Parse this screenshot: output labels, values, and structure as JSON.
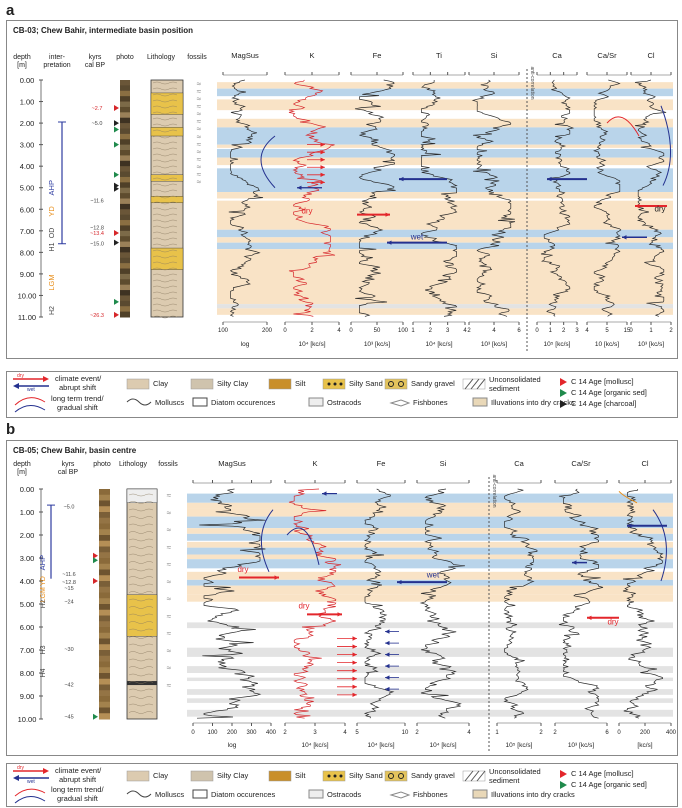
{
  "panels": [
    {
      "letter": "a",
      "title": "CB-03; Chew Bahir, intermediate basin position",
      "headers": {
        "depth": "depth",
        "depth_unit": "[m]",
        "interpretation": "inter-",
        "interpretation2": "pretation",
        "kyrs": "kyrs",
        "kyrs2": "cal BP",
        "photo": "photo",
        "lithology": "Lithology",
        "fossils": "fossils"
      },
      "proxies": [
        "MagSus",
        "K",
        "Fe",
        "Ti",
        "Si",
        "Ca",
        "Ca/Sr",
        "Cl"
      ],
      "units": [
        "log",
        "10⁴ [kc/s]",
        "10³ [kc/s]",
        "10⁴ [kc/s]",
        "10³ [kc/s]",
        "10⁵ [kc/s]",
        "10 [kc/s]",
        "10³ [kc/s]"
      ],
      "tick_labels": [
        [
          "100",
          "200"
        ],
        [
          "0",
          "2",
          "4"
        ],
        [
          "0",
          "50",
          "100"
        ],
        [
          "1",
          "2",
          "3",
          "4"
        ],
        [
          "2",
          "4",
          "6"
        ],
        [
          "0",
          "1",
          "2",
          "3"
        ],
        [
          "4",
          "5",
          "15"
        ],
        [
          "0",
          "1",
          "2"
        ]
      ],
      "correlation_label": "anti-correlation",
      "depth_ticks": [
        "0.00",
        "1.00",
        "2.00",
        "3.00",
        "4.00",
        "5.00",
        "6.00",
        "7.00",
        "8.00",
        "9.00",
        "10.00",
        "11.00"
      ],
      "ages": [
        "~2.7",
        "~5.0",
        "~11.6",
        "~12.8",
        "~13.4",
        "~15.0",
        "~26.3"
      ],
      "interpretation_labels": [
        "AHP",
        "YD",
        "OD",
        "H1",
        "LGM",
        "H2"
      ],
      "annotations": [
        "dry",
        "wet",
        "dry"
      ]
    },
    {
      "letter": "b",
      "title": "CB-05; Chew Bahir, basin centre",
      "headers": {
        "depth": "depth",
        "depth_unit": "[m]",
        "kyrs": "kyrs",
        "kyrs2": "cal BP",
        "photo": "photo",
        "lithology": "Lithology",
        "fossils": "fossils"
      },
      "proxies": [
        "MagSus",
        "K",
        "Fe",
        "Si",
        "Ca",
        "Ca/Sr",
        "Cl"
      ],
      "units": [
        "log",
        "10⁴ [kc/s]",
        "10⁴ [kc/s]",
        "10⁴ [kc/s]",
        "10⁵ [kc/s]",
        "10³ [kc/s]",
        "[kc/s]"
      ],
      "tick_labels": [
        [
          "0",
          "100",
          "200",
          "300",
          "400"
        ],
        [
          "2",
          "3",
          "4"
        ],
        [
          "5",
          "10"
        ],
        [
          "2",
          "4"
        ],
        [
          "1",
          "2"
        ],
        [
          "2",
          "6"
        ],
        [
          "0",
          "200",
          "400"
        ]
      ],
      "correlation_label": "anti-correlation",
      "depth_ticks": [
        "0.00",
        "1.00",
        "2.00",
        "3.00",
        "4.00",
        "5.00",
        "6.00",
        "7.00",
        "8.00",
        "9.00",
        "10.00"
      ],
      "ages": [
        "~5.0",
        "~11.6",
        "~12.8",
        "~15",
        "~24",
        "~30",
        "~42",
        "~45"
      ],
      "interpretation_labels": [
        "AHP",
        "YD",
        "LGM",
        "H2",
        "H3",
        "H4"
      ],
      "annotations": [
        "dry",
        "wet",
        "dry",
        "dry"
      ]
    }
  ],
  "legend": {
    "arrow_dry": "dry",
    "arrow_wet": "wet",
    "climate_event": "climate event/",
    "abrupt_shift": "abrupt shift",
    "long_term": "long term trend/",
    "gradual_shift": "gradual shift",
    "clay": "Clay",
    "silty_clay": "Silty Clay",
    "silt": "Silt",
    "silty_sand": "Silty Sand",
    "sandy_gravel": "Sandy gravel",
    "unconsolidated": "Unconsolidated",
    "sediment": "sediment",
    "molluscs": "Molluscs",
    "diatoms": "Diatom occurences",
    "ostracods": "Ostracods",
    "fishbones": "Fishbones",
    "illuvations": "Illuvations into dry cracks",
    "c14_mollusc": "C 14 Age [mollusc]",
    "c14_organic": "C 14 Age [organic sed]",
    "c14_charcoal": "C 14 Age [charcoal]"
  },
  "colors": {
    "wet_band": "#b9d4ea",
    "dry_band": "#f9e3c6",
    "grey_band": "#e3e3e3",
    "k_curve": "#d6262a",
    "arrow_red": "#e3262b",
    "arrow_blue": "#24318f",
    "interp_blue": "#2e3ca0",
    "interp_orange": "#e88e1a",
    "clay": "#dccbb0",
    "sand": "#e8c24a"
  }
}
